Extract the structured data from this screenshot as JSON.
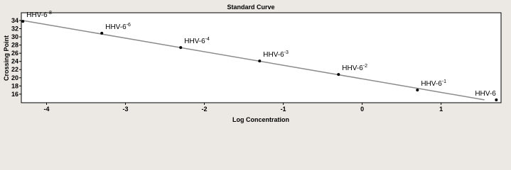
{
  "chart_data": {
    "type": "scatter",
    "title": "Standard Curve",
    "x_label": "Log Concentration",
    "y_label": "Crossing Point",
    "x": [
      -4.3,
      -3.3,
      -2.3,
      -1.3,
      -0.3,
      0.7,
      1.7
    ],
    "values": [
      33.8,
      30.9,
      27.4,
      24.1,
      20.8,
      17.0,
      14.6
    ],
    "point_labels": [
      {
        "text": "HHV-6",
        "sup": "-8"
      },
      {
        "text": "HHV-6",
        "sup": "-6"
      },
      {
        "text": "HHV-6",
        "sup": "-4"
      },
      {
        "text": "HHV-6",
        "sup": "-3"
      },
      {
        "text": "HHV-6",
        "sup": "-2"
      },
      {
        "text": "HHV-6",
        "sup": "-1"
      },
      {
        "text": "HHV-6"
      }
    ],
    "fit_line": {
      "x": [
        -4.3,
        1.55
      ],
      "y": [
        34.0,
        14.6
      ],
      "color": "#8c8c8c"
    },
    "color": "#000000",
    "xlim": [
      -4.32,
      1.76
    ],
    "ylim": [
      13.9,
      35.9
    ],
    "xticks": [
      -4,
      -3,
      -2,
      -1,
      0,
      1
    ],
    "yticks": [
      16,
      18,
      20,
      22,
      24,
      26,
      28,
      30,
      32,
      34
    ]
  }
}
